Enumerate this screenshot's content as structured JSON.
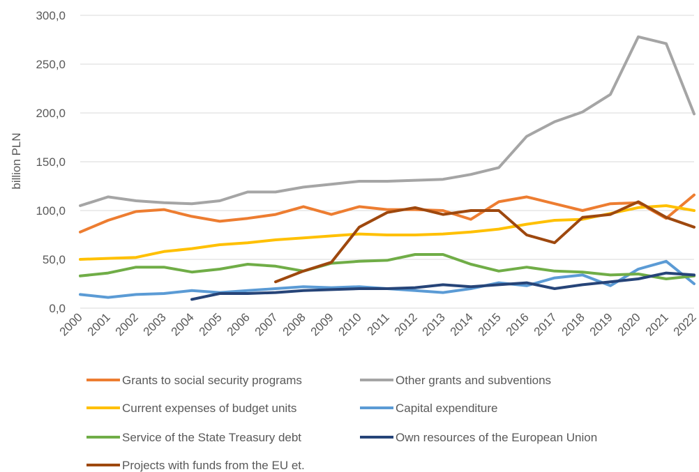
{
  "chart_data": {
    "type": "line",
    "title": "",
    "xlabel": "",
    "ylabel": "billion PLN",
    "ylim": [
      0,
      300
    ],
    "y_ticks": [
      "0,0",
      "50,0",
      "100,0",
      "150,0",
      "200,0",
      "250,0",
      "300,0"
    ],
    "y_tick_values": [
      0,
      50,
      100,
      150,
      200,
      250,
      300
    ],
    "grid": "horizontal",
    "legend_position": "bottom",
    "categories": [
      "2000",
      "2001",
      "2002",
      "2003",
      "2004",
      "2005",
      "2006",
      "2007",
      "2008",
      "2009",
      "2010",
      "2011",
      "2012",
      "2013",
      "2014",
      "2015",
      "2016",
      "2017",
      "2018",
      "2019",
      "2020",
      "2021",
      "2022"
    ],
    "series": [
      {
        "name": "Grants to social security programs",
        "color": "#ed7d31",
        "values": [
          78,
          90,
          99,
          101,
          94,
          89,
          92,
          96,
          104,
          96,
          104,
          101,
          101,
          100,
          91,
          109,
          114,
          107,
          100,
          107,
          108,
          92,
          116
        ]
      },
      {
        "name": "Other grants and subventions",
        "color": "#a5a5a5",
        "values": [
          105,
          114,
          110,
          108,
          107,
          110,
          119,
          119,
          124,
          127,
          130,
          130,
          131,
          132,
          137,
          144,
          176,
          191,
          201,
          219,
          278,
          271,
          199
        ]
      },
      {
        "name": "Current expenses of budget units",
        "color": "#ffc000",
        "values": [
          50,
          51,
          52,
          58,
          61,
          65,
          67,
          70,
          72,
          74,
          76,
          75,
          75,
          76,
          78,
          81,
          86,
          90,
          91,
          97,
          103,
          105,
          100
        ]
      },
      {
        "name": "Capital expenditure",
        "color": "#5b9bd5",
        "values": [
          14,
          11,
          14,
          15,
          18,
          16,
          18,
          20,
          22,
          21,
          22,
          20,
          18,
          16,
          20,
          26,
          23,
          31,
          34,
          23,
          40,
          48,
          25
        ]
      },
      {
        "name": "Service of the State Treasury debt",
        "color": "#70ad47",
        "values": [
          33,
          36,
          42,
          42,
          37,
          40,
          45,
          43,
          38,
          46,
          48,
          49,
          55,
          55,
          45,
          38,
          42,
          38,
          37,
          34,
          35,
          30,
          33
        ]
      },
      {
        "name": "Own resources of the European Union",
        "color": "#264478",
        "values": [
          null,
          null,
          null,
          null,
          9,
          15,
          15,
          16,
          18,
          19,
          20,
          20,
          21,
          24,
          22,
          24,
          26,
          20,
          24,
          27,
          30,
          36,
          34
        ]
      },
      {
        "name": "Projects with funds from the EU et.",
        "color": "#9e480e",
        "values": [
          null,
          null,
          null,
          null,
          null,
          null,
          null,
          27,
          38,
          47,
          83,
          98,
          103,
          96,
          100,
          100,
          75,
          67,
          93,
          96,
          109,
          93,
          83
        ]
      }
    ]
  }
}
